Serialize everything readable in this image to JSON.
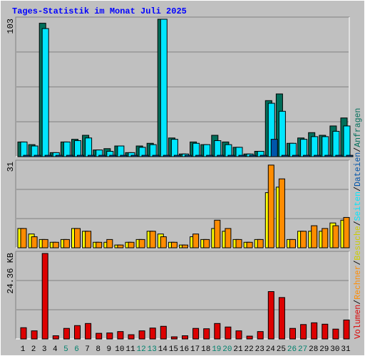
{
  "title": "Tages-Statistik im Monat Juli 2025",
  "colors": {
    "background": "#c0c0c0",
    "title": "#0000ff",
    "hits": "#006e5a",
    "files": "#00e6ff",
    "pages": "#0055aa",
    "visits": "#ffff00",
    "sites": "#ff8c00",
    "kbytes": "#dd0000",
    "weekend_label": "#00806c",
    "weekday_label": "#000000"
  },
  "chart_data": [
    {
      "type": "bar",
      "panel": "hits-files-pages",
      "max_label": "103",
      "ylim": [
        0,
        103
      ],
      "grid": true,
      "legend_right": [
        "Anfragen",
        "Dateien",
        "Seiten"
      ],
      "categories": [
        "1",
        "2",
        "3",
        "4",
        "5",
        "6",
        "7",
        "8",
        "9",
        "10",
        "11",
        "12",
        "13",
        "14",
        "15",
        "16",
        "17",
        "18",
        "19",
        "20",
        "21",
        "22",
        "23",
        "24",
        "25",
        "26",
        "27",
        "28",
        "29",
        "30",
        "31"
      ],
      "series": [
        {
          "name": "Anfragen",
          "values": [
            11,
            9,
            100,
            3,
            11,
            13,
            16,
            5,
            6,
            8,
            3,
            8,
            10,
            103,
            14,
            2,
            11,
            9,
            16,
            11,
            7,
            2,
            4,
            42,
            47,
            10,
            14,
            18,
            16,
            23,
            29
          ]
        },
        {
          "name": "Dateien",
          "values": [
            11,
            8,
            96,
            3,
            11,
            12,
            14,
            5,
            4,
            8,
            3,
            7,
            9,
            103,
            13,
            2,
            10,
            9,
            12,
            9,
            7,
            2,
            4,
            40,
            34,
            10,
            13,
            15,
            15,
            19,
            23
          ]
        },
        {
          "name": "Seiten",
          "values": [
            1,
            1,
            1,
            1,
            1,
            1,
            1,
            1,
            1,
            1,
            1,
            1,
            1,
            1,
            1,
            1,
            1,
            1,
            1,
            1,
            1,
            1,
            1,
            13,
            1,
            1,
            1,
            1,
            1,
            1,
            1
          ]
        }
      ]
    },
    {
      "type": "bar",
      "panel": "visits-sites",
      "max_label": "31",
      "ylim": [
        0,
        31
      ],
      "grid": true,
      "legend_right": [
        "Besuche",
        "Rechner"
      ],
      "categories": [
        "1",
        "2",
        "3",
        "4",
        "5",
        "6",
        "7",
        "8",
        "9",
        "10",
        "11",
        "12",
        "13",
        "14",
        "15",
        "16",
        "17",
        "18",
        "19",
        "20",
        "21",
        "22",
        "23",
        "24",
        "25",
        "26",
        "27",
        "28",
        "29",
        "30",
        "31"
      ],
      "series": [
        {
          "name": "Besuche",
          "values": [
            7,
            5,
            3,
            2,
            3,
            7,
            6,
            2,
            2,
            1,
            2,
            3,
            6,
            5,
            2,
            1,
            4,
            3,
            7,
            6,
            3,
            2,
            3,
            20,
            22,
            3,
            6,
            6,
            6,
            9,
            10
          ]
        },
        {
          "name": "Rechner",
          "values": [
            7,
            4,
            3,
            2,
            3,
            7,
            6,
            2,
            3,
            1,
            2,
            3,
            6,
            4,
            2,
            1,
            5,
            3,
            10,
            7,
            3,
            2,
            3,
            30,
            25,
            3,
            6,
            8,
            7,
            8,
            11
          ]
        }
      ]
    },
    {
      "type": "bar",
      "panel": "volume",
      "max_label": "24.36 KB",
      "ylim": [
        0,
        24.36
      ],
      "grid": true,
      "legend_right": [
        "Volumen"
      ],
      "categories": [
        "1",
        "2",
        "3",
        "4",
        "5",
        "6",
        "7",
        "8",
        "9",
        "10",
        "11",
        "12",
        "13",
        "14",
        "15",
        "16",
        "17",
        "18",
        "19",
        "20",
        "21",
        "22",
        "23",
        "24",
        "25",
        "26",
        "27",
        "28",
        "29",
        "30",
        "31"
      ],
      "series": [
        {
          "name": "Volumen",
          "values": [
            3.2,
            2.3,
            24.36,
            0.9,
            3.0,
            3.8,
            4.4,
            1.6,
            1.7,
            2.1,
            1.2,
            2.3,
            3.1,
            3.6,
            0.6,
            0.9,
            3.0,
            2.9,
            4.4,
            3.4,
            2.3,
            0.8,
            2.1,
            13.5,
            11.8,
            3.0,
            4.1,
            4.6,
            4.2,
            2.8,
            5.4
          ]
        }
      ]
    }
  ],
  "x_labels": [
    "1",
    "2",
    "3",
    "4",
    "5",
    "6",
    "7",
    "8",
    "9",
    "10",
    "11",
    "12",
    "13",
    "14",
    "15",
    "16",
    "17",
    "18",
    "19",
    "20",
    "21",
    "22",
    "23",
    "24",
    "25",
    "26",
    "27",
    "28",
    "29",
    "30",
    "31"
  ],
  "weekend_days": [
    "5",
    "6",
    "12",
    "13",
    "19",
    "20",
    "26",
    "27"
  ],
  "right_legend_sequence": [
    {
      "text": "Volumen",
      "color": "#dd0000"
    },
    {
      "text": "/",
      "color": "#000000"
    },
    {
      "text": "Rechner",
      "color": "#ff8c00"
    },
    {
      "text": "/",
      "color": "#000000"
    },
    {
      "text": "Besuche",
      "color": "#cccc00"
    },
    {
      "text": "/",
      "color": "#000000"
    },
    {
      "text": "Seiten",
      "color": "#00e6ff"
    },
    {
      "text": "/",
      "color": "#000000"
    },
    {
      "text": "Dateien",
      "color": "#0055aa"
    },
    {
      "text": "/",
      "color": "#000000"
    },
    {
      "text": "Anfragen",
      "color": "#006e5a"
    }
  ]
}
